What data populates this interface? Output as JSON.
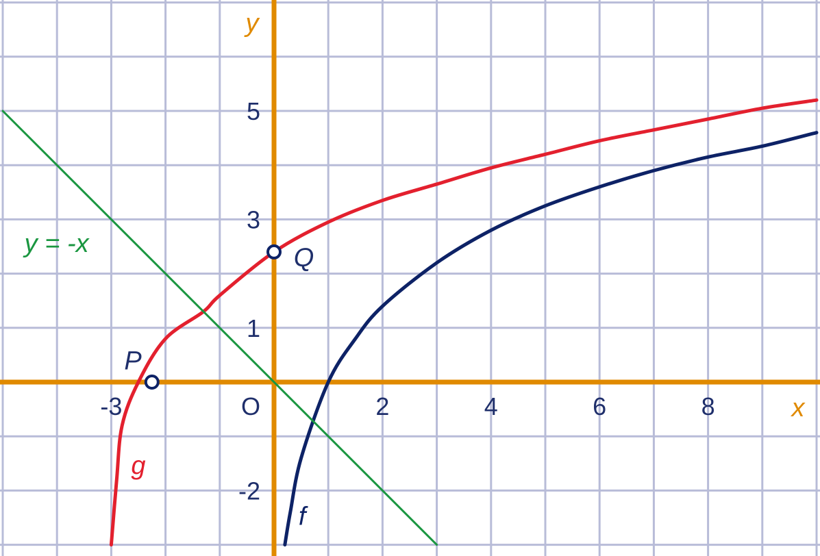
{
  "chart_data": {
    "type": "line",
    "title": "",
    "xlabel": "x",
    "ylabel": "y",
    "xlim": [
      -5,
      10
    ],
    "ylim": [
      -3,
      7
    ],
    "grid": true,
    "x_tick_labels": [
      {
        "x": -3,
        "label": "-3"
      },
      {
        "x": 2,
        "label": "2"
      },
      {
        "x": 4,
        "label": "4"
      },
      {
        "x": 6,
        "label": "6"
      },
      {
        "x": 8,
        "label": "8"
      }
    ],
    "y_tick_labels": [
      {
        "y": 5,
        "label": "5"
      },
      {
        "y": 3,
        "label": "3"
      },
      {
        "y": 1,
        "label": "1"
      },
      {
        "y": -2,
        "label": "-2"
      }
    ],
    "origin_label": "O",
    "colors": {
      "grid": "#b8bcd8",
      "axes": "#e08a00",
      "f": "#0d2266",
      "g": "#e3202e",
      "line": "#1a9640",
      "points": "#0d2266"
    },
    "series": [
      {
        "name": "f",
        "points": [
          [
            0.2,
            -3.0
          ],
          [
            0.3,
            -2.4
          ],
          [
            0.5,
            -1.4
          ],
          [
            1.0,
            0.0
          ],
          [
            1.5,
            0.8
          ],
          [
            2.0,
            1.4
          ],
          [
            3.0,
            2.2
          ],
          [
            4.0,
            2.8
          ],
          [
            5.0,
            3.25
          ],
          [
            6.0,
            3.6
          ],
          [
            7.0,
            3.9
          ],
          [
            8.0,
            4.15
          ],
          [
            9.0,
            4.35
          ],
          [
            10.0,
            4.6
          ]
        ]
      },
      {
        "name": "g",
        "points": [
          [
            -3.0,
            -3.0
          ],
          [
            -2.9,
            -1.8
          ],
          [
            -2.8,
            -0.8
          ],
          [
            -2.5,
            0.0
          ],
          [
            -2.0,
            0.8
          ],
          [
            -1.3,
            1.3
          ],
          [
            -1.0,
            1.6
          ],
          [
            0.0,
            2.4
          ],
          [
            1.0,
            2.95
          ],
          [
            2.0,
            3.35
          ],
          [
            3.0,
            3.65
          ],
          [
            4.0,
            3.95
          ],
          [
            5.0,
            4.2
          ],
          [
            6.0,
            4.45
          ],
          [
            7.0,
            4.65
          ],
          [
            8.0,
            4.85
          ],
          [
            9.0,
            5.05
          ],
          [
            10.0,
            5.2
          ]
        ]
      },
      {
        "name": "y = -x",
        "points": [
          [
            -5.0,
            5.0
          ],
          [
            3.0,
            -3.0
          ]
        ]
      }
    ],
    "points": [
      {
        "name": "P",
        "x": -2.25,
        "y": 0.0
      },
      {
        "name": "Q",
        "x": 0.0,
        "y": 2.4
      }
    ]
  }
}
